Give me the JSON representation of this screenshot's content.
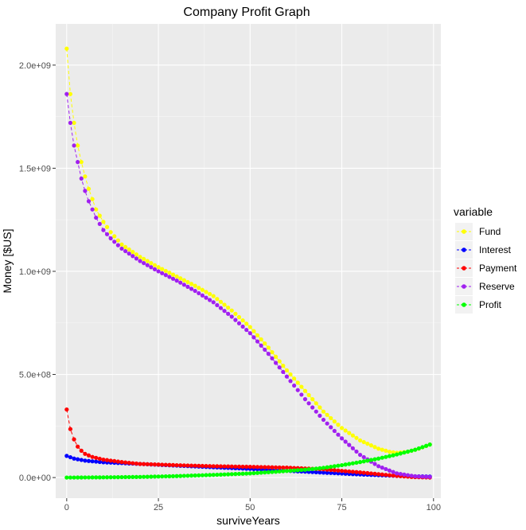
{
  "chart_data": {
    "type": "line",
    "title": "Company Profit Graph",
    "xlabel": "surviveYears",
    "ylabel": "Money [$US]",
    "xlim": [
      -3,
      102
    ],
    "ylim": [
      -100000000,
      2200000000
    ],
    "x_ticks": [
      0,
      25,
      50,
      75,
      100
    ],
    "x_tick_labels": [
      "0",
      "25",
      "50",
      "75",
      "100"
    ],
    "y_ticks": [
      0,
      500000000,
      1000000000,
      1500000000,
      2000000000
    ],
    "y_tick_labels": [
      "0.0e+00",
      "5.0e+08",
      "1.0e+09",
      "1.5e+09",
      "2.0e+09"
    ],
    "grid": true,
    "legend": {
      "title": "variable",
      "placement": "right"
    },
    "x_range": [
      0,
      99
    ],
    "series": [
      {
        "name": "Fund",
        "color": "#ffff00",
        "knots": [
          [
            0,
            2080000000
          ],
          [
            1,
            1860000000
          ],
          [
            2,
            1720000000
          ],
          [
            3,
            1610000000
          ],
          [
            4,
            1530000000
          ],
          [
            5,
            1460000000
          ],
          [
            6,
            1400000000
          ],
          [
            7,
            1350000000
          ],
          [
            8,
            1300000000
          ],
          [
            10,
            1240000000
          ],
          [
            12,
            1190000000
          ],
          [
            15,
            1130000000
          ],
          [
            20,
            1070000000
          ],
          [
            25,
            1020000000
          ],
          [
            30,
            975000000
          ],
          [
            35,
            930000000
          ],
          [
            40,
            880000000
          ],
          [
            45,
            810000000
          ],
          [
            50,
            730000000
          ],
          [
            55,
            630000000
          ],
          [
            60,
            520000000
          ],
          [
            65,
            420000000
          ],
          [
            70,
            320000000
          ],
          [
            75,
            240000000
          ],
          [
            80,
            180000000
          ],
          [
            85,
            140000000
          ],
          [
            88,
            125000000
          ],
          [
            90,
            120000000
          ],
          [
            93,
            125000000
          ],
          [
            96,
            140000000
          ],
          [
            99,
            160000000
          ]
        ]
      },
      {
        "name": "Interest",
        "color": "#0000ff",
        "knots": [
          [
            0,
            105000000
          ],
          [
            2,
            92000000
          ],
          [
            5,
            82000000
          ],
          [
            10,
            74000000
          ],
          [
            20,
            66000000
          ],
          [
            30,
            58000000
          ],
          [
            40,
            50000000
          ],
          [
            50,
            42000000
          ],
          [
            60,
            33000000
          ],
          [
            70,
            24000000
          ],
          [
            80,
            15000000
          ],
          [
            90,
            8000000
          ],
          [
            95,
            6000000
          ],
          [
            99,
            5000000
          ]
        ]
      },
      {
        "name": "Payment",
        "color": "#ff0000",
        "knots": [
          [
            0,
            330000000
          ],
          [
            1,
            235000000
          ],
          [
            2,
            185000000
          ],
          [
            3,
            150000000
          ],
          [
            4,
            130000000
          ],
          [
            5,
            115000000
          ],
          [
            7,
            100000000
          ],
          [
            10,
            87000000
          ],
          [
            15,
            75000000
          ],
          [
            20,
            66000000
          ],
          [
            30,
            60000000
          ],
          [
            40,
            55000000
          ],
          [
            50,
            52000000
          ],
          [
            60,
            48000000
          ],
          [
            70,
            40000000
          ],
          [
            80,
            25000000
          ],
          [
            90,
            8000000
          ],
          [
            95,
            2000000
          ],
          [
            99,
            0
          ]
        ]
      },
      {
        "name": "Reserve",
        "color": "#a020f0",
        "knots": [
          [
            0,
            1860000000
          ],
          [
            1,
            1720000000
          ],
          [
            2,
            1610000000
          ],
          [
            3,
            1530000000
          ],
          [
            4,
            1450000000
          ],
          [
            5,
            1390000000
          ],
          [
            6,
            1340000000
          ],
          [
            7,
            1300000000
          ],
          [
            8,
            1260000000
          ],
          [
            10,
            1200000000
          ],
          [
            12,
            1160000000
          ],
          [
            15,
            1110000000
          ],
          [
            20,
            1050000000
          ],
          [
            25,
            1000000000
          ],
          [
            30,
            955000000
          ],
          [
            35,
            905000000
          ],
          [
            40,
            850000000
          ],
          [
            45,
            780000000
          ],
          [
            50,
            700000000
          ],
          [
            55,
            600000000
          ],
          [
            60,
            490000000
          ],
          [
            65,
            380000000
          ],
          [
            70,
            280000000
          ],
          [
            75,
            190000000
          ],
          [
            80,
            110000000
          ],
          [
            85,
            55000000
          ],
          [
            90,
            20000000
          ],
          [
            95,
            6000000
          ],
          [
            99,
            3000000
          ]
        ]
      },
      {
        "name": "Profit",
        "color": "#00ff00",
        "knots": [
          [
            0,
            0
          ],
          [
            10,
            1000000
          ],
          [
            20,
            3000000
          ],
          [
            30,
            7000000
          ],
          [
            40,
            13000000
          ],
          [
            50,
            20000000
          ],
          [
            60,
            32000000
          ],
          [
            65,
            38000000
          ],
          [
            70,
            47000000
          ],
          [
            75,
            60000000
          ],
          [
            80,
            75000000
          ],
          [
            85,
            92000000
          ],
          [
            90,
            112000000
          ],
          [
            95,
            135000000
          ],
          [
            99,
            160000000
          ]
        ]
      }
    ]
  }
}
